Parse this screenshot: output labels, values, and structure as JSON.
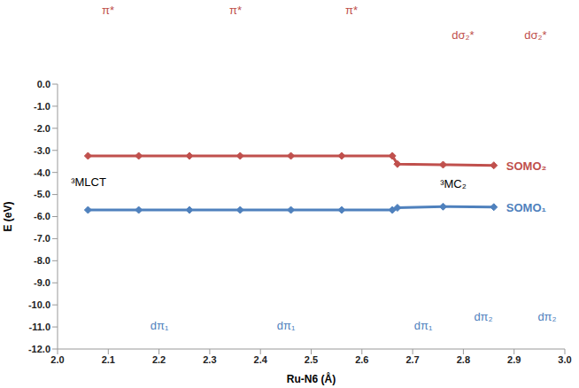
{
  "chart_data": {
    "type": "line",
    "x_label": "Ru-N6 (Å)",
    "y_label": "E (eV)",
    "x": [
      2.06,
      2.16,
      2.26,
      2.36,
      2.46,
      2.56,
      2.66,
      2.67,
      2.76,
      2.86
    ],
    "series": [
      {
        "name": "SOMO₂",
        "color": "#c0504d",
        "values": [
          -3.25,
          -3.25,
          -3.25,
          -3.25,
          -3.25,
          -3.25,
          -3.25,
          -3.62,
          -3.65,
          -3.68
        ]
      },
      {
        "name": "SOMO₁",
        "color": "#4f81bd",
        "values": [
          -5.7,
          -5.7,
          -5.7,
          -5.7,
          -5.7,
          -5.7,
          -5.7,
          -5.6,
          -5.55,
          -5.57
        ]
      }
    ],
    "marker": "diamond",
    "xlim": [
      2.0,
      3.0
    ],
    "xticks": [
      {
        "value": 2.0,
        "label": "2.0"
      },
      2.1,
      2.2,
      2.3,
      2.4,
      2.5,
      2.6,
      2.7,
      2.8,
      2.9,
      {
        "value": 3.0,
        "label": "3.0"
      }
    ],
    "ylim": [
      -12,
      0
    ],
    "yticks": [
      {
        "value": 0,
        "label": "0.0"
      },
      {
        "value": -1,
        "label": "-1.0"
      },
      {
        "value": -2,
        "label": "-2.0"
      },
      {
        "value": -3,
        "label": "-3.0"
      },
      {
        "value": -4,
        "label": "-4.0"
      },
      {
        "value": -5,
        "label": "-5.0"
      },
      {
        "value": -6,
        "label": "-6.0"
      },
      {
        "value": -7,
        "label": "-7.0"
      },
      {
        "value": -8,
        "label": "-8.0"
      },
      {
        "value": -9,
        "label": "-9.0"
      },
      {
        "value": -10,
        "label": "-10.0"
      },
      {
        "value": -11,
        "label": "-11.0"
      },
      {
        "value": -12,
        "label": "-12.0"
      }
    ],
    "grid": false,
    "annotations": [
      "π*",
      "π*",
      "π*",
      "dσ₂*",
      "dσ₂*",
      "dπ₁",
      "dπ₁",
      "dπ₁",
      "dπ₂",
      "dπ₂",
      "³MLCT",
      "³MC₂"
    ]
  }
}
